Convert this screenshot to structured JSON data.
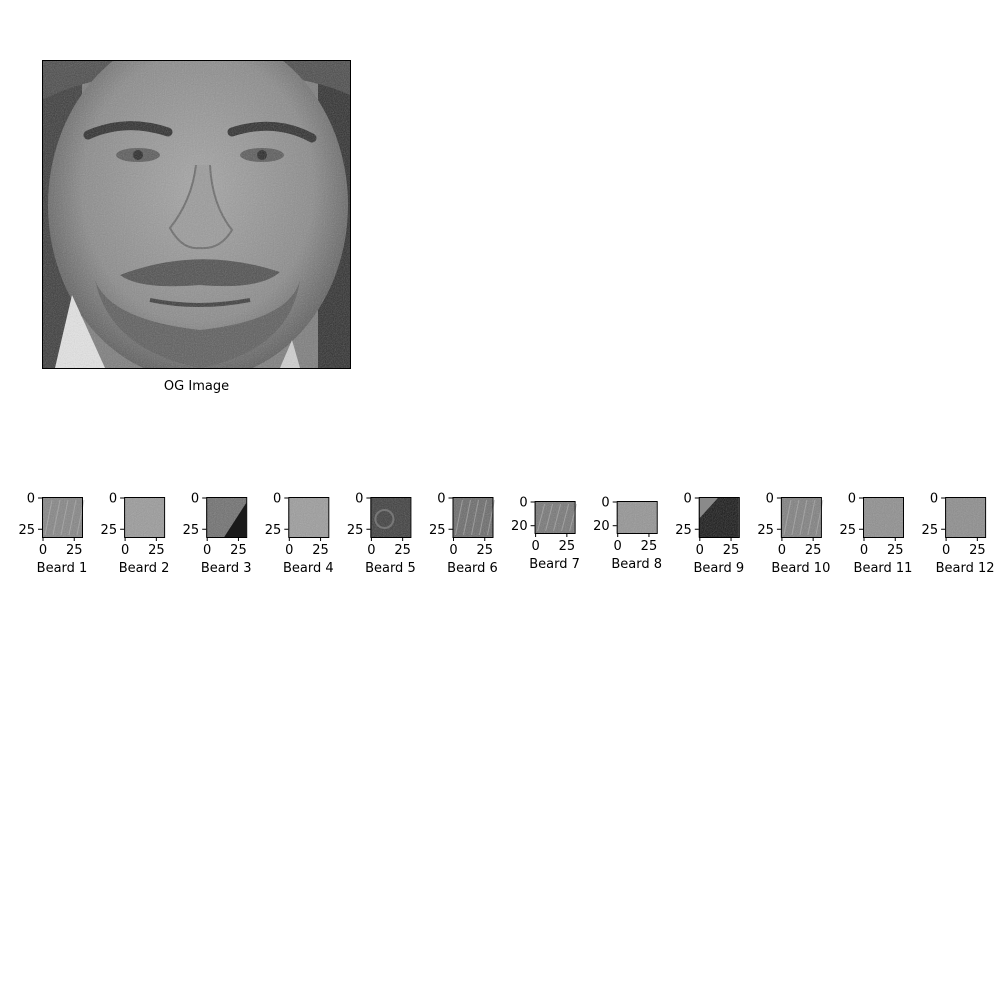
{
  "figure": {
    "main_image": {
      "xlabel": "OG Image",
      "content": "grayscale close-up photo of a man's face with stubble beard",
      "axis_ticks": "off"
    },
    "patches": [
      {
        "xlabel": "Beard 1",
        "xticks": [
          "0",
          "25"
        ],
        "yticks": [
          "0",
          "25"
        ],
        "tone": "mid-gray diagonal stubble texture"
      },
      {
        "xlabel": "Beard 2",
        "xticks": [
          "0",
          "25"
        ],
        "yticks": [
          "0",
          "25"
        ],
        "tone": "light-gray stubble texture"
      },
      {
        "xlabel": "Beard 3",
        "xticks": [
          "0",
          "25"
        ],
        "yticks": [
          "0",
          "25"
        ],
        "tone": "stubble with dark corner"
      },
      {
        "xlabel": "Beard 4",
        "xticks": [
          "0",
          "25"
        ],
        "yticks": [
          "0",
          "25"
        ],
        "tone": "light-gray skin texture"
      },
      {
        "xlabel": "Beard 5",
        "xticks": [
          "0",
          "25"
        ],
        "yticks": [
          "0",
          "25"
        ],
        "tone": "dark curly hair"
      },
      {
        "xlabel": "Beard 6",
        "xticks": [
          "0",
          "25"
        ],
        "yticks": [
          "0",
          "25"
        ],
        "tone": "streaked stubble"
      },
      {
        "xlabel": "Beard 7",
        "xticks": [
          "0",
          "25"
        ],
        "yticks": [
          "0",
          "20"
        ],
        "tone": "streaked stubble (wide)"
      },
      {
        "xlabel": "Beard 8",
        "xticks": [
          "0",
          "25"
        ],
        "yticks": [
          "0",
          "20"
        ],
        "tone": "light-gray texture (wide)"
      },
      {
        "xlabel": "Beard 9",
        "xticks": [
          "0",
          "25"
        ],
        "yticks": [
          "0",
          "25"
        ],
        "tone": "mostly black with gray corner"
      },
      {
        "xlabel": "Beard 10",
        "xticks": [
          "0",
          "25"
        ],
        "yticks": [
          "0",
          "25"
        ],
        "tone": "mid-gray stubble"
      },
      {
        "xlabel": "Beard 11",
        "xticks": [
          "0",
          "25"
        ],
        "yticks": [
          "0",
          "25"
        ],
        "tone": "light-gray texture"
      },
      {
        "xlabel": "Beard 12",
        "xticks": [
          "0",
          "25"
        ],
        "yticks": [
          "0",
          "25"
        ],
        "tone": "light-gray texture"
      }
    ]
  },
  "colors": {
    "background": "#ffffff",
    "axis": "#000000",
    "skin_mid": "#8a8a8a",
    "hair_dark": "#2a2a2a",
    "shadow_black": "#111111",
    "collar_white": "#e8e8e8"
  }
}
